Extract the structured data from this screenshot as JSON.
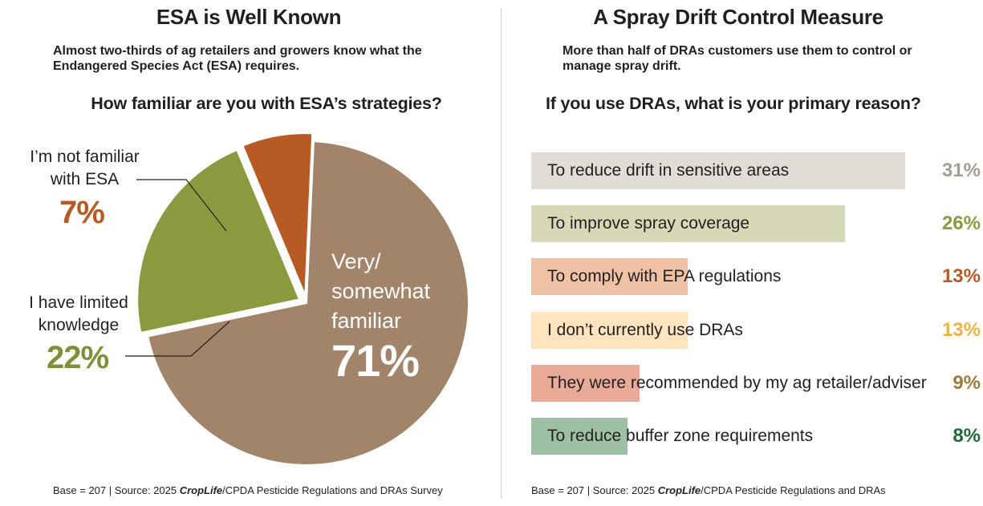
{
  "left": {
    "title": "ESA is Well Known",
    "subtitle": "Almost two-thirds of ag retailers and growers know what the Endangered Species Act (ESA) requires.",
    "question": "How familiar are you with ESA’s strategies?",
    "source_prefix": "Base = 207 | Source: 2025 ",
    "source_brand": "CropLife",
    "source_suffix": "/CPDA Pesticide Regulations and DRAs Survey"
  },
  "right": {
    "title": "A Spray Drift Control Measure",
    "subtitle": "More than half of DRAs customers use them to control or manage spray drift.",
    "question": "If you use DRAs, what is your primary reason?",
    "source_prefix": "Base = 207 | Source: 2025 ",
    "source_brand": "CropLife",
    "source_suffix": "/CPDA Pesticide Regulations and DRAs"
  },
  "chart_data": [
    {
      "type": "pie",
      "title": "How familiar are you with ESA’s strategies?",
      "slices": [
        {
          "label": "Very/ somewhat familiar",
          "label_lines": [
            "Very/",
            "somewhat",
            "familiar"
          ],
          "value": 71,
          "display": "71%",
          "color": "#a1846a",
          "label_color": "#ffffff"
        },
        {
          "label": "I have limited knowledge",
          "label_lines": [
            "I have limited",
            "knowledge"
          ],
          "value": 22,
          "display": "22%",
          "color": "#8a9a3f",
          "label_color": "#7f9138"
        },
        {
          "label": "I’m not familiar with ESA",
          "label_lines": [
            "I’m not familiar",
            "with ESA"
          ],
          "value": 7,
          "display": "7%",
          "color": "#b85a23",
          "label_color": "#b85a23"
        }
      ]
    },
    {
      "type": "bar",
      "orientation": "horizontal",
      "title": "If you use DRAs, what is your primary reason?",
      "categories": [
        "To reduce drift in sensitive areas",
        "To improve spray coverage",
        "To comply with EPA regulations",
        "I don’t currently use DRAs",
        "They were recommended by my ag retailer/adviser",
        "To reduce buffer zone requirements"
      ],
      "values": [
        31,
        26,
        13,
        13,
        9,
        8
      ],
      "display": [
        "31%",
        "26%",
        "13%",
        "13%",
        "9%",
        "8%"
      ],
      "bar_colors": [
        "#e2dcd6",
        "#d7d8b5",
        "#efc2a6",
        "#fde4be",
        "#e9ab97",
        "#9dc0a2"
      ],
      "pct_colors": [
        "#a69d95",
        "#8a9a3f",
        "#b85a23",
        "#f0b241",
        "#a07a3a",
        "#1f6a35"
      ]
    }
  ]
}
